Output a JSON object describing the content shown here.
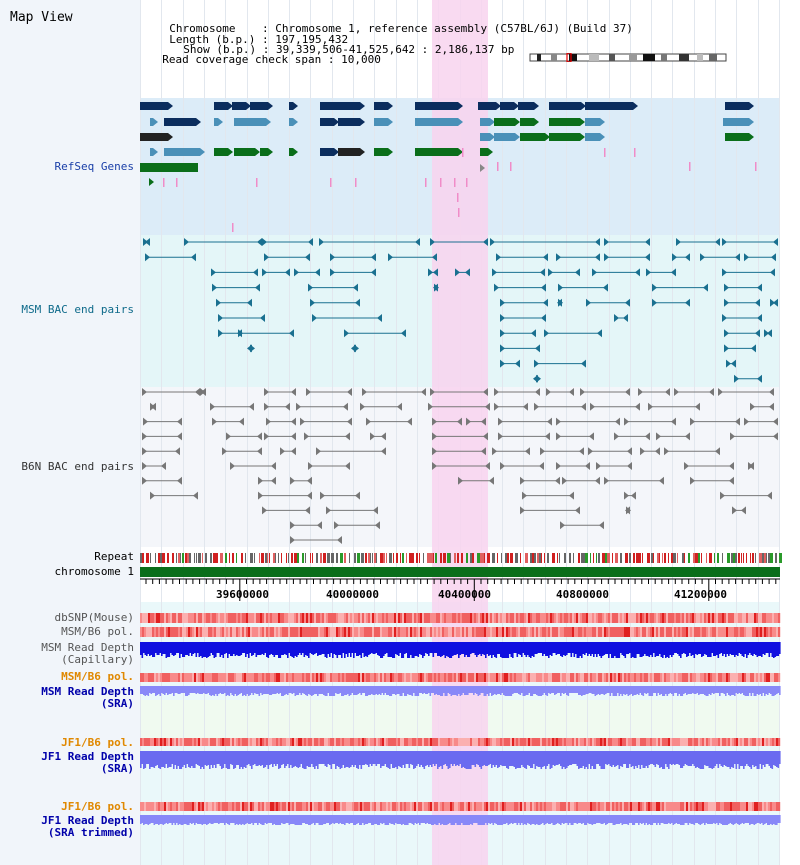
{
  "page": {
    "title": "Map View"
  },
  "header": {
    "chromosome_key": "Chromosome",
    "chromosome_val": "Chromosome 1, reference assembly (C57BL/6J) (Build 37)",
    "length_key": "Length (b.p.)",
    "length_val": "197,195,432",
    "show_key": "Show (b.p.)",
    "show_val": "39,339,506-41,525,642 : 2,186,137 bp",
    "span_key": "Read coverage check span",
    "span_val": "10,000"
  },
  "tracks": {
    "refseq": "RefSeq Genes",
    "msm_bac": "MSM BAC end pairs",
    "b6n_bac": "B6N BAC end pairs",
    "repeat": "Repeat",
    "chromosome": "chromosome 1"
  },
  "axis": {
    "ticks": [
      "39600000",
      "40000000",
      "40400000",
      "40800000",
      "41200000"
    ]
  },
  "lower_tracks": [
    {
      "id": "dbsnp",
      "label": "dbSNP(Mouse)",
      "color": "#555555"
    },
    {
      "id": "msm_b6_pol",
      "label": "MSM/B6 pol.",
      "color": "#555555"
    },
    {
      "id": "msm_depth_cap",
      "label": "MSM Read Depth",
      "sub": "(Capillary)",
      "color": "#555555"
    },
    {
      "id": "msm_b6_pol2",
      "label": "MSM/B6 pol.",
      "color": "#e08800"
    },
    {
      "id": "msm_depth_sra",
      "label": "MSM Read Depth",
      "sub": "(SRA)",
      "color": "#0000aa"
    },
    {
      "id": "jf1_b6_pol",
      "label": "JF1/B6 pol.",
      "color": "#e08800"
    },
    {
      "id": "jf1_depth_sra",
      "label": "JF1 Read Depth",
      "sub": "(SRA)",
      "color": "#0000aa"
    },
    {
      "id": "jf1_b6_pol2",
      "label": "JF1/B6 pol.",
      "color": "#e08800"
    },
    {
      "id": "jf1_depth_trim",
      "label": "JF1 Read Depth",
      "sub": "(SRA trimmed)",
      "color": "#0000aa"
    }
  ],
  "colors": {
    "refseq_bg": "#dcecf8",
    "msm_bg": "#e4f6f8",
    "b6n_bg": "#f4f6fa",
    "highlight": "#f8d4ee",
    "gene_dark": "#0b2d5e",
    "gene_mid": "#4a90b8",
    "gene_green": "#0a6e1a",
    "chromosome_bar": "#0a6e1a"
  }
}
